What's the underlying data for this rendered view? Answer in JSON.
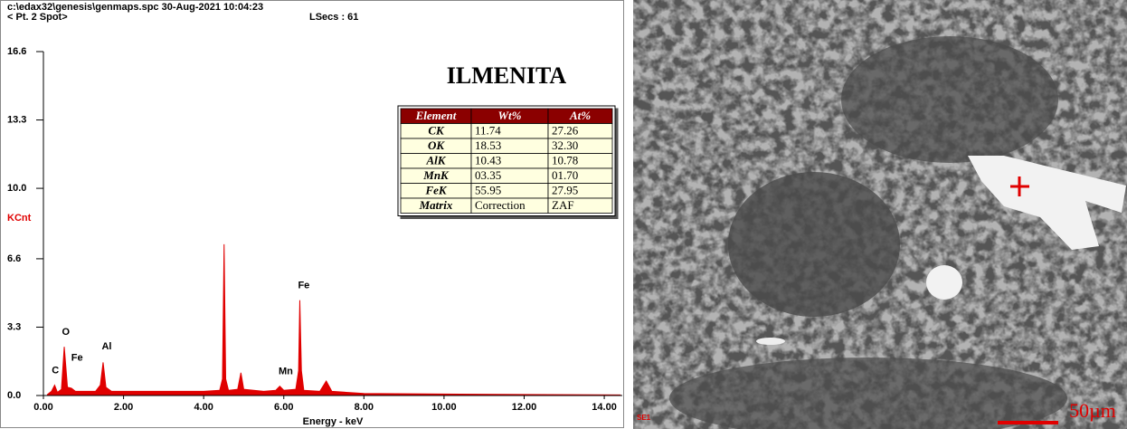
{
  "chart_data": {
    "type": "area",
    "file_info": "c:\\edax32\\genesis\\genmaps.spc  30-Aug-2021 10:04:23",
    "spot_label": "< Pt.  2 Spot>",
    "live_time": "LSecs :  61",
    "title": "ILMENITA",
    "x_label": "Energy - keV",
    "y_label": "KCnt",
    "color": "#e00000",
    "x": [
      0.1,
      0.2,
      0.28,
      0.35,
      0.45,
      0.52,
      0.6,
      0.7,
      0.8,
      1.0,
      1.3,
      1.42,
      1.49,
      1.56,
      1.7,
      2.0,
      3.0,
      4.0,
      4.4,
      4.47,
      4.51,
      4.55,
      4.62,
      4.85,
      4.93,
      5.0,
      5.5,
      5.8,
      5.9,
      6.0,
      6.3,
      6.37,
      6.4,
      6.44,
      6.5,
      6.9,
      7.06,
      7.2,
      8.0,
      10.0,
      12.0,
      14.4
    ],
    "values": [
      0.05,
      0.2,
      0.5,
      0.15,
      0.3,
      2.35,
      0.4,
      0.35,
      0.2,
      0.2,
      0.2,
      0.5,
      1.6,
      0.4,
      0.2,
      0.2,
      0.2,
      0.2,
      0.25,
      0.8,
      7.3,
      0.8,
      0.25,
      0.3,
      1.1,
      0.3,
      0.2,
      0.25,
      0.45,
      0.25,
      0.3,
      1.2,
      4.6,
      1.2,
      0.25,
      0.2,
      0.7,
      0.2,
      0.1,
      0.07,
      0.05,
      0.03
    ],
    "xlim": [
      0,
      14.45
    ],
    "ylim": [
      0,
      16.6
    ],
    "xticks": [
      {
        "value": 0,
        "label": "0.00"
      },
      {
        "value": 2,
        "label": "2.00"
      },
      {
        "value": 4,
        "label": "4.00"
      },
      {
        "value": 6,
        "label": "6.00"
      },
      {
        "value": 8,
        "label": "8.00"
      },
      {
        "value": 10,
        "label": "10.00"
      },
      {
        "value": 12,
        "label": "12.00"
      },
      {
        "value": 14,
        "label": "14.00"
      }
    ],
    "yticks": [
      {
        "value": 0,
        "label": "0.0"
      },
      3.3,
      6.6,
      {
        "value": 10,
        "label": "10.0"
      },
      13.3,
      16.6
    ],
    "annotations": [
      {
        "text": "C",
        "x": 0.3,
        "y": 1.2
      },
      {
        "text": "O",
        "x": 0.56,
        "y": 3.05
      },
      {
        "text": "Fe",
        "x": 0.84,
        "y": 1.8
      },
      {
        "text": "Al",
        "x": 1.58,
        "y": 2.35
      },
      {
        "text": "Mn",
        "x": 6.05,
        "y": 1.15
      },
      {
        "text": "Fe",
        "x": 6.5,
        "y": 5.3
      }
    ]
  },
  "results_table": {
    "header": [
      "Element",
      "Wt%",
      "At%"
    ],
    "rows": [
      [
        "CK",
        "11.74",
        "27.26"
      ],
      [
        "OK",
        "18.53",
        "32.30"
      ],
      [
        "AlK",
        "10.43",
        "10.78"
      ],
      [
        "MnK",
        "03.35",
        "01.70"
      ],
      [
        "FeK",
        "55.95",
        "27.95"
      ],
      [
        "Matrix",
        "Correction",
        "ZAF"
      ]
    ]
  },
  "image": {
    "detector": "SE1",
    "scale_label": "50µm"
  }
}
